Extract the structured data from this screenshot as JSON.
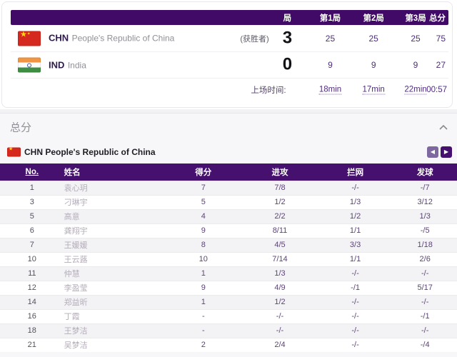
{
  "scoreboard": {
    "columns": [
      "局",
      "第1局",
      "第2局",
      "第3局",
      "总分"
    ],
    "teams": [
      {
        "code": "CHN",
        "name": "People's Republic of China",
        "winner_label": "(获胜者)",
        "set_count": "3",
        "set_scores": [
          "25",
          "25",
          "25"
        ],
        "total": "75"
      },
      {
        "code": "IND",
        "name": "India",
        "winner_label": "",
        "set_count": "0",
        "set_scores": [
          "9",
          "9",
          "9"
        ],
        "total": "27"
      }
    ],
    "time_row": {
      "label": "上场时间:",
      "values": [
        "18min",
        "17min",
        "22min"
      ],
      "total": "00:57"
    }
  },
  "stats_section": {
    "title": "总分",
    "team_label": "CHN People's Republic of China",
    "table": {
      "headers": [
        "No.",
        "姓名",
        "得分",
        "进攻",
        "拦网",
        "发球"
      ],
      "rows": [
        {
          "no": "1",
          "name": "袁心玥",
          "score": "7",
          "attack": "7/8",
          "block": "-/-",
          "serve": "-/7"
        },
        {
          "no": "3",
          "name": "刁琳宇",
          "score": "5",
          "attack": "1/2",
          "block": "1/3",
          "serve": "3/12"
        },
        {
          "no": "5",
          "name": "高意",
          "score": "4",
          "attack": "2/2",
          "block": "1/2",
          "serve": "1/3"
        },
        {
          "no": "6",
          "name": "龚翔宇",
          "score": "9",
          "attack": "8/11",
          "block": "1/1",
          "serve": "-/5"
        },
        {
          "no": "7",
          "name": "王媛媛",
          "score": "8",
          "attack": "4/5",
          "block": "3/3",
          "serve": "1/18"
        },
        {
          "no": "10",
          "name": "王云蕗",
          "score": "10",
          "attack": "7/14",
          "block": "1/1",
          "serve": "2/6"
        },
        {
          "no": "11",
          "name": "仲慧",
          "score": "1",
          "attack": "1/3",
          "block": "-/-",
          "serve": "-/-"
        },
        {
          "no": "12",
          "name": "李盈莹",
          "score": "9",
          "attack": "4/9",
          "block": "-/1",
          "serve": "5/17"
        },
        {
          "no": "14",
          "name": "郑益昕",
          "score": "1",
          "attack": "1/2",
          "block": "-/-",
          "serve": "-/-"
        },
        {
          "no": "16",
          "name": "丁霞",
          "score": "-",
          "attack": "-/-",
          "block": "-/-",
          "serve": "-/1"
        },
        {
          "no": "18",
          "name": "王梦洁",
          "score": "-",
          "attack": "-/-",
          "block": "-/-",
          "serve": "-/-"
        },
        {
          "no": "21",
          "name": "吴梦洁",
          "score": "2",
          "attack": "2/4",
          "block": "-/-",
          "serve": "-/4"
        }
      ]
    }
  },
  "icons": {
    "star": "★",
    "prev_arrow": "◀",
    "next_arrow": "▶"
  },
  "colors": {
    "header_purple": "#45106e",
    "scoreboard_header_purple": "#400a66",
    "stat_text_purple": "#5d4378",
    "accent_purple": "#4f2d7c"
  }
}
